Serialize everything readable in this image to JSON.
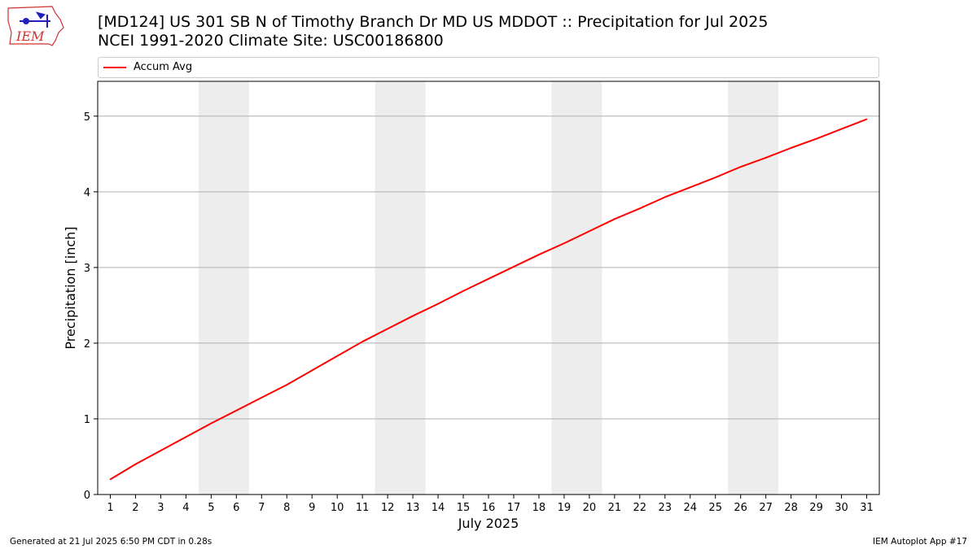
{
  "header": {
    "title_line1": "[MD124] US 301 SB N of Timothy Branch Dr MD US MDDOT :: Precipitation for Jul 2025",
    "title_line2": "NCEI 1991-2020 Climate Site: USC00186800"
  },
  "logo": {
    "text": "IEM",
    "icon": "iem-logo-iowa-map"
  },
  "footer": {
    "generated": "Generated at 21 Jul 2025 6:50 PM CDT in 0.28s",
    "app": "IEM Autoplot App #17"
  },
  "colors": {
    "line": "#ff0000",
    "weekend_band": "#ededed",
    "grid": "#b0b0b0",
    "logo": "#d03030"
  },
  "chart_data": {
    "type": "line",
    "title": "[MD124] US 301 SB N of Timothy Branch Dr MD US MDDOT :: Precipitation for Jul 2025",
    "subtitle": "NCEI 1991-2020 Climate Site: USC00186800",
    "xlabel": "July 2025",
    "ylabel": "Precipitation [inch]",
    "legend": {
      "position": "top",
      "entries": [
        "Accum Avg"
      ]
    },
    "xlim": [
      0.5,
      31.5
    ],
    "ylim": [
      0,
      5.46
    ],
    "y_ticks": [
      0,
      1,
      2,
      3,
      4,
      5
    ],
    "x": [
      1,
      2,
      3,
      4,
      5,
      6,
      7,
      8,
      9,
      10,
      11,
      12,
      13,
      14,
      15,
      16,
      17,
      18,
      19,
      20,
      21,
      22,
      23,
      24,
      25,
      26,
      27,
      28,
      29,
      30,
      31
    ],
    "x_tick_labels": [
      "1",
      "2",
      "3",
      "4",
      "5",
      "6",
      "7",
      "8",
      "9",
      "10",
      "11",
      "12",
      "13",
      "14",
      "15",
      "16",
      "17",
      "18",
      "19",
      "20",
      "21",
      "22",
      "23",
      "24",
      "25",
      "26",
      "27",
      "28",
      "29",
      "30",
      "31"
    ],
    "grid": {
      "y": true,
      "x": false
    },
    "shaded_weekends": [
      [
        5,
        6
      ],
      [
        12,
        13
      ],
      [
        19,
        20
      ],
      [
        26,
        27
      ]
    ],
    "series": [
      {
        "name": "Accum Avg",
        "values": [
          0.2,
          0.4,
          0.58,
          0.76,
          0.94,
          1.11,
          1.28,
          1.45,
          1.64,
          1.83,
          2.02,
          2.19,
          2.36,
          2.52,
          2.69,
          2.85,
          3.01,
          3.17,
          3.32,
          3.48,
          3.64,
          3.78,
          3.93,
          4.06,
          4.19,
          4.33,
          4.45,
          4.58,
          4.7,
          4.83,
          4.96
        ]
      }
    ]
  }
}
